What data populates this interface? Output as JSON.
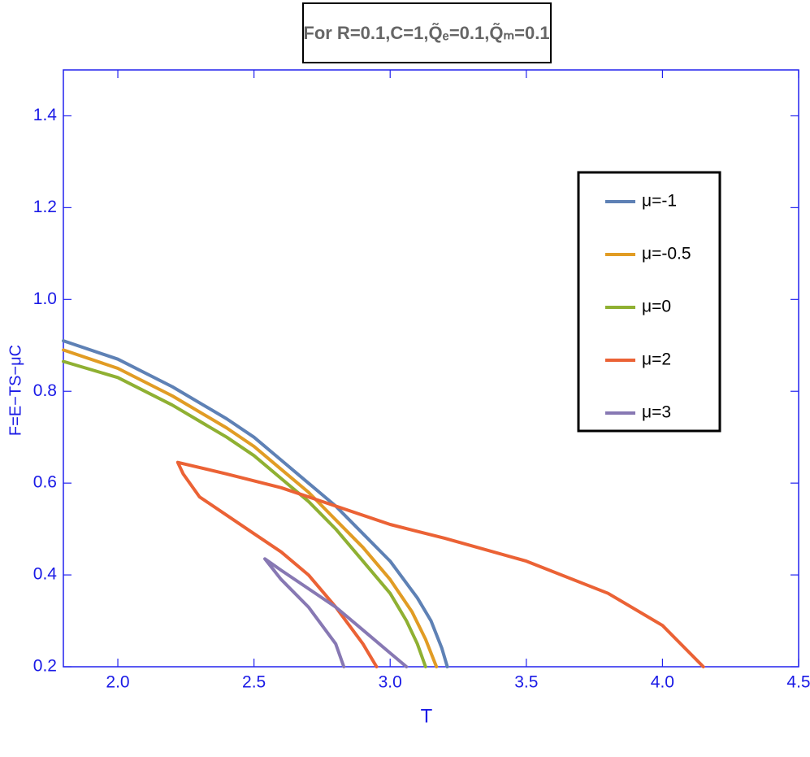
{
  "chart_data": {
    "type": "line",
    "title": "For R=0.1,C=1,Q̃ₑ=0.1,Q̃ₘ=0.1",
    "xlabel": "T",
    "ylabel": "F=E−TS−μC",
    "xlim": [
      1.8,
      4.5
    ],
    "ylim": [
      0.2,
      1.5
    ],
    "xticks": [
      {
        "value": 2.0,
        "label": "2.0"
      },
      2.5,
      {
        "value": 3.0,
        "label": "3.0"
      },
      3.5,
      {
        "value": 4.0,
        "label": "4.0"
      },
      4.5
    ],
    "yticks": [
      0.2,
      0.4,
      0.6,
      0.8,
      {
        "value": 1.0,
        "label": "1.0"
      },
      1.2,
      1.4
    ],
    "series": [
      {
        "name": "μ=-1",
        "color": "#5e81b5",
        "x": [
          1.8,
          2.0,
          2.2,
          2.4,
          2.5,
          2.6,
          2.7,
          2.8,
          2.9,
          3.0,
          3.1,
          3.15,
          3.19,
          3.21
        ],
        "values": [
          0.91,
          0.87,
          0.81,
          0.74,
          0.7,
          0.65,
          0.6,
          0.55,
          0.49,
          0.43,
          0.35,
          0.3,
          0.24,
          0.2
        ]
      },
      {
        "name": "μ=-0.5",
        "color": "#e19c24",
        "x": [
          1.8,
          2.0,
          2.2,
          2.4,
          2.5,
          2.6,
          2.7,
          2.8,
          2.9,
          3.0,
          3.08,
          3.13,
          3.17
        ],
        "values": [
          0.89,
          0.85,
          0.79,
          0.72,
          0.68,
          0.63,
          0.58,
          0.52,
          0.46,
          0.39,
          0.32,
          0.26,
          0.2
        ]
      },
      {
        "name": "μ=0",
        "color": "#8fb032",
        "x": [
          1.8,
          2.0,
          2.2,
          2.4,
          2.5,
          2.6,
          2.7,
          2.8,
          2.9,
          3.0,
          3.06,
          3.1,
          3.13
        ],
        "values": [
          0.865,
          0.83,
          0.77,
          0.7,
          0.66,
          0.61,
          0.56,
          0.5,
          0.43,
          0.36,
          0.3,
          0.25,
          0.2
        ]
      },
      {
        "name": "μ=2",
        "color": "#eb6235",
        "x": [
          4.15,
          4.0,
          3.8,
          3.5,
          3.2,
          3.0,
          2.8,
          2.6,
          2.4,
          2.22,
          2.24,
          2.3,
          2.4,
          2.5,
          2.6,
          2.7,
          2.8,
          2.9,
          2.95
        ],
        "values": [
          0.2,
          0.29,
          0.36,
          0.43,
          0.48,
          0.51,
          0.55,
          0.59,
          0.62,
          0.645,
          0.62,
          0.57,
          0.53,
          0.49,
          0.45,
          0.4,
          0.33,
          0.25,
          0.2
        ]
      },
      {
        "name": "μ=3",
        "color": "#8778b3",
        "x": [
          3.06,
          3.0,
          2.9,
          2.8,
          2.7,
          2.6,
          2.54,
          2.56,
          2.6,
          2.7,
          2.8,
          2.83
        ],
        "values": [
          0.2,
          0.23,
          0.28,
          0.33,
          0.37,
          0.41,
          0.435,
          0.42,
          0.39,
          0.33,
          0.25,
          0.2
        ]
      }
    ]
  }
}
